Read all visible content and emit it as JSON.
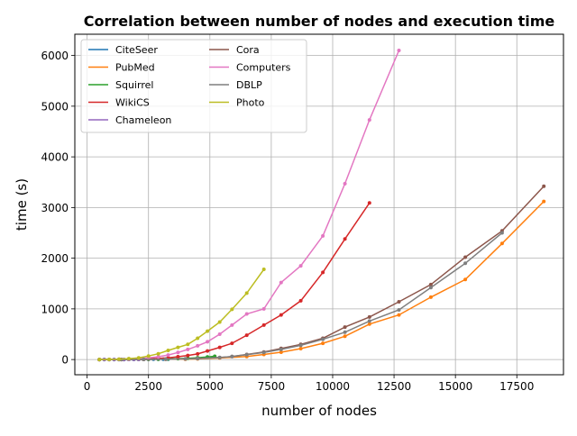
{
  "chart_data": {
    "type": "line",
    "title": "Correlation between number of nodes and execution time",
    "xlabel": "number of nodes",
    "ylabel": "time (s)",
    "xlim": [
      -500,
      19400
    ],
    "ylim": [
      -300,
      6420
    ],
    "xticks": [
      0,
      2500,
      5000,
      7500,
      10000,
      12500,
      15000,
      17500
    ],
    "yticks": [
      0,
      1000,
      2000,
      3000,
      4000,
      5000,
      6000
    ],
    "grid": true,
    "legend": {
      "placement": "top-left",
      "columns": 2
    },
    "series": [
      {
        "name": "CiteSeer",
        "color": "#1f77b4",
        "x": [
          500,
          700,
          900,
          1100,
          1300,
          1500,
          1700,
          1900,
          2100,
          2300,
          2500,
          2700,
          2900,
          3100,
          3300
        ],
        "y": [
          0,
          0,
          0,
          1,
          1,
          1,
          2,
          2,
          3,
          3,
          4,
          5,
          6,
          7,
          8
        ]
      },
      {
        "name": "PubMed",
        "color": "#ff7f0e",
        "x": [
          500,
          1400,
          2300,
          3200,
          4000,
          4500,
          5400,
          6500,
          7200,
          7900,
          8700,
          9600,
          10500,
          11500,
          12700,
          14000,
          15400,
          16900,
          18600
        ],
        "y": [
          0,
          1,
          2,
          5,
          8,
          12,
          30,
          60,
          100,
          145,
          215,
          320,
          460,
          700,
          880,
          1230,
          1580,
          2290,
          3120
        ]
      },
      {
        "name": "Squirrel",
        "color": "#2ca02c",
        "x": [
          500,
          900,
          1300,
          1700,
          2100,
          2500,
          2900,
          3300,
          3700,
          4100,
          4500,
          4900,
          5200
        ],
        "y": [
          0,
          0,
          1,
          2,
          3,
          5,
          8,
          12,
          18,
          26,
          36,
          50,
          65
        ]
      },
      {
        "name": "WikiCS",
        "color": "#d62728",
        "x": [
          500,
          900,
          1300,
          1700,
          2100,
          2500,
          2900,
          3300,
          3700,
          4100,
          4500,
          4900,
          5400,
          5900,
          6500,
          7200,
          7900,
          8700,
          9600,
          10500,
          11500
        ],
        "y": [
          0,
          1,
          2,
          4,
          8,
          14,
          22,
          35,
          55,
          80,
          110,
          170,
          240,
          320,
          480,
          680,
          880,
          1160,
          1720,
          2380,
          3090
        ]
      },
      {
        "name": "Chameleon",
        "color": "#9467bd",
        "x": [
          500,
          700,
          900,
          1100,
          1300,
          1500,
          1700,
          1900,
          2100,
          2300
        ],
        "y": [
          0,
          0,
          0,
          1,
          1,
          1,
          2,
          2,
          3,
          4
        ]
      },
      {
        "name": "Cora",
        "color": "#8c564b",
        "x": [
          500,
          1400,
          2300,
          3200,
          4000,
          4500,
          5400,
          5900,
          6500,
          7200,
          7900,
          8700,
          9600,
          10500,
          11500,
          12700,
          14000,
          15400,
          16900,
          18600
        ],
        "y": [
          0,
          1,
          3,
          6,
          12,
          20,
          40,
          60,
          100,
          150,
          220,
          300,
          420,
          640,
          840,
          1140,
          1480,
          2020,
          2540,
          3420
        ]
      },
      {
        "name": "Computers",
        "color": "#e377c2",
        "x": [
          500,
          900,
          1300,
          1700,
          2100,
          2500,
          2900,
          3300,
          3700,
          4100,
          4500,
          4900,
          5400,
          5900,
          6500,
          7200,
          7900,
          8700,
          9600,
          10500,
          11500,
          12700
        ],
        "y": [
          0,
          2,
          6,
          12,
          20,
          35,
          55,
          90,
          140,
          200,
          270,
          350,
          500,
          680,
          900,
          1000,
          1520,
          1850,
          2440,
          3470,
          4730,
          6100
        ]
      },
      {
        "name": "DBLP",
        "color": "#7f7f7f",
        "x": [
          500,
          1400,
          2300,
          3200,
          4000,
          4500,
          5400,
          5900,
          6500,
          7200,
          7900,
          8700,
          9600,
          10500,
          11500,
          12700,
          14000,
          15400,
          16900
        ],
        "y": [
          0,
          1,
          3,
          6,
          12,
          20,
          40,
          60,
          95,
          140,
          200,
          280,
          400,
          540,
          760,
          980,
          1420,
          1900,
          2500
        ]
      },
      {
        "name": "Photo",
        "color": "#bcbd22",
        "x": [
          500,
          900,
          1300,
          1700,
          2100,
          2500,
          2900,
          3300,
          3700,
          4100,
          4500,
          4900,
          5400,
          5900,
          6500,
          7200
        ],
        "y": [
          0,
          3,
          8,
          18,
          35,
          70,
          115,
          180,
          240,
          300,
          420,
          560,
          740,
          990,
          1310,
          1780
        ]
      }
    ]
  }
}
